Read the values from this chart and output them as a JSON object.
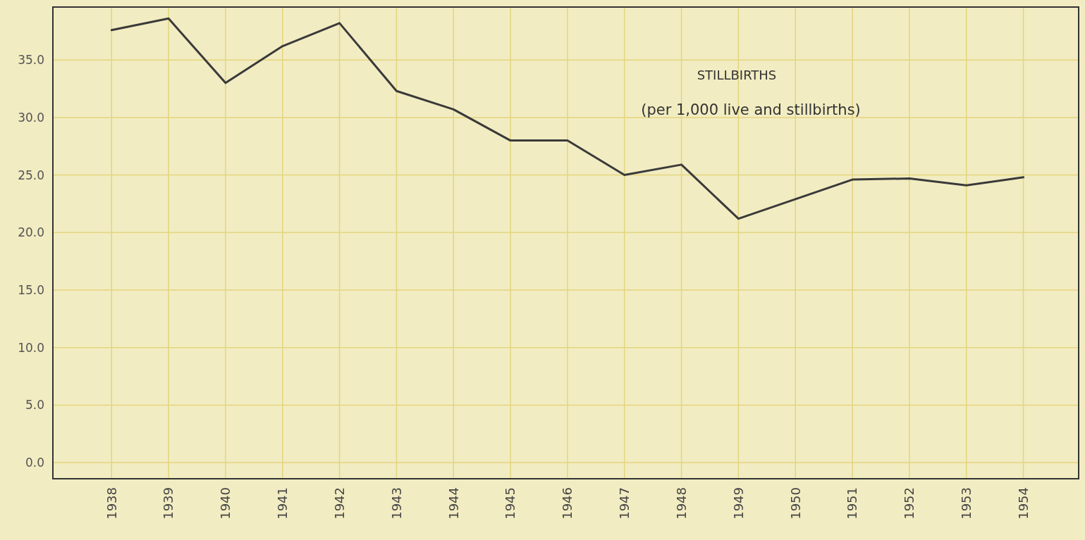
{
  "chart_data": {
    "type": "line",
    "title": "STILLBIRTHS",
    "subtitle": "(per 1,000 live and stillbirths)",
    "categories": [
      "1938",
      "1939",
      "1940",
      "1941",
      "1942",
      "1943",
      "1944",
      "1945",
      "1946",
      "1947",
      "1948",
      "1949",
      "1950",
      "1951",
      "1952",
      "1953",
      "1954"
    ],
    "series": [
      {
        "color": "#3a3a3a",
        "values": [
          37.6,
          38.6,
          33.0,
          36.2,
          38.2,
          32.3,
          30.7,
          28.0,
          28.0,
          25.0,
          25.9,
          21.2,
          22.9,
          24.6,
          24.7,
          24.1,
          24.8
        ]
      }
    ],
    "ylim": [
      -1.4,
      39.6
    ],
    "yticks": [
      {
        "value": 0,
        "label": "0.0"
      },
      {
        "value": 5,
        "label": "5.0"
      },
      {
        "value": 10,
        "label": "10.0"
      },
      {
        "value": 15,
        "label": "15.0"
      },
      {
        "value": 20,
        "label": "20.0"
      },
      {
        "value": 25,
        "label": "25.0"
      },
      {
        "value": 30,
        "label": "30.0"
      },
      {
        "value": 35,
        "label": "35.0"
      }
    ],
    "grid": true,
    "marker": "none",
    "line_style": "solid"
  }
}
